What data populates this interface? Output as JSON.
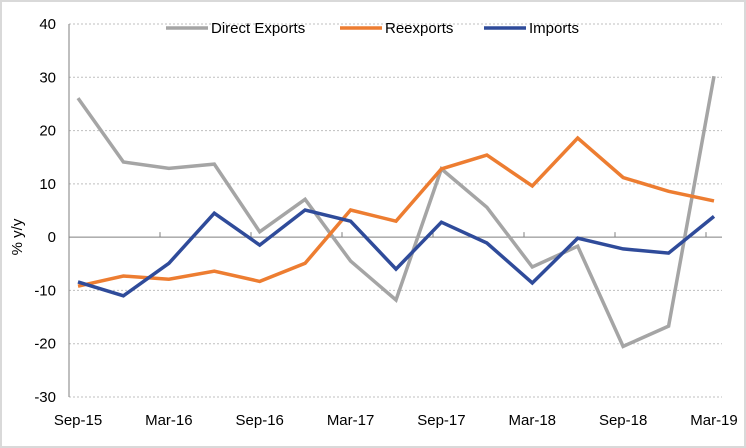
{
  "chart_data": {
    "type": "line",
    "title": "",
    "xlabel": "",
    "ylabel": "% y/y",
    "ylim": [
      -30,
      40
    ],
    "yticks": [
      40,
      30,
      20,
      10,
      0,
      -10,
      -20,
      -30
    ],
    "grid": true,
    "legend_position": "top",
    "x": [
      "Sep-15",
      "Dec-15",
      "Mar-16",
      "Jun-16",
      "Sep-16",
      "Dec-16",
      "Mar-17",
      "Jun-17",
      "Sep-17",
      "Dec-17",
      "Mar-18",
      "Jun-18",
      "Sep-18",
      "Dec-18",
      "Mar-19"
    ],
    "xtick_labels": [
      "Sep-15",
      "Mar-16",
      "Sep-16",
      "Mar-17",
      "Sep-17",
      "Mar-18",
      "Sep-18",
      "Mar-19"
    ],
    "series": [
      {
        "name": "Direct Exports",
        "color": "#a5a5a5",
        "values": [
          26.1,
          14.1,
          12.9,
          13.7,
          1.0,
          7.1,
          -4.5,
          -11.8,
          12.8,
          5.6,
          -5.6,
          -1.7,
          -20.5,
          -16.7,
          30.2
        ]
      },
      {
        "name": "Reexports",
        "color": "#ed7d31",
        "values": [
          -9.2,
          -7.3,
          -7.9,
          -6.4,
          -8.3,
          -4.9,
          5.1,
          3.0,
          12.8,
          15.4,
          9.6,
          18.6,
          11.2,
          8.6,
          6.8
        ]
      },
      {
        "name": "Imports",
        "color": "#2f4b9a",
        "values": [
          -8.4,
          -11.0,
          -4.9,
          4.5,
          -1.5,
          5.1,
          3.0,
          -6.0,
          2.8,
          -1.1,
          -8.6,
          -0.2,
          -2.2,
          -3.0,
          3.9
        ]
      }
    ]
  }
}
